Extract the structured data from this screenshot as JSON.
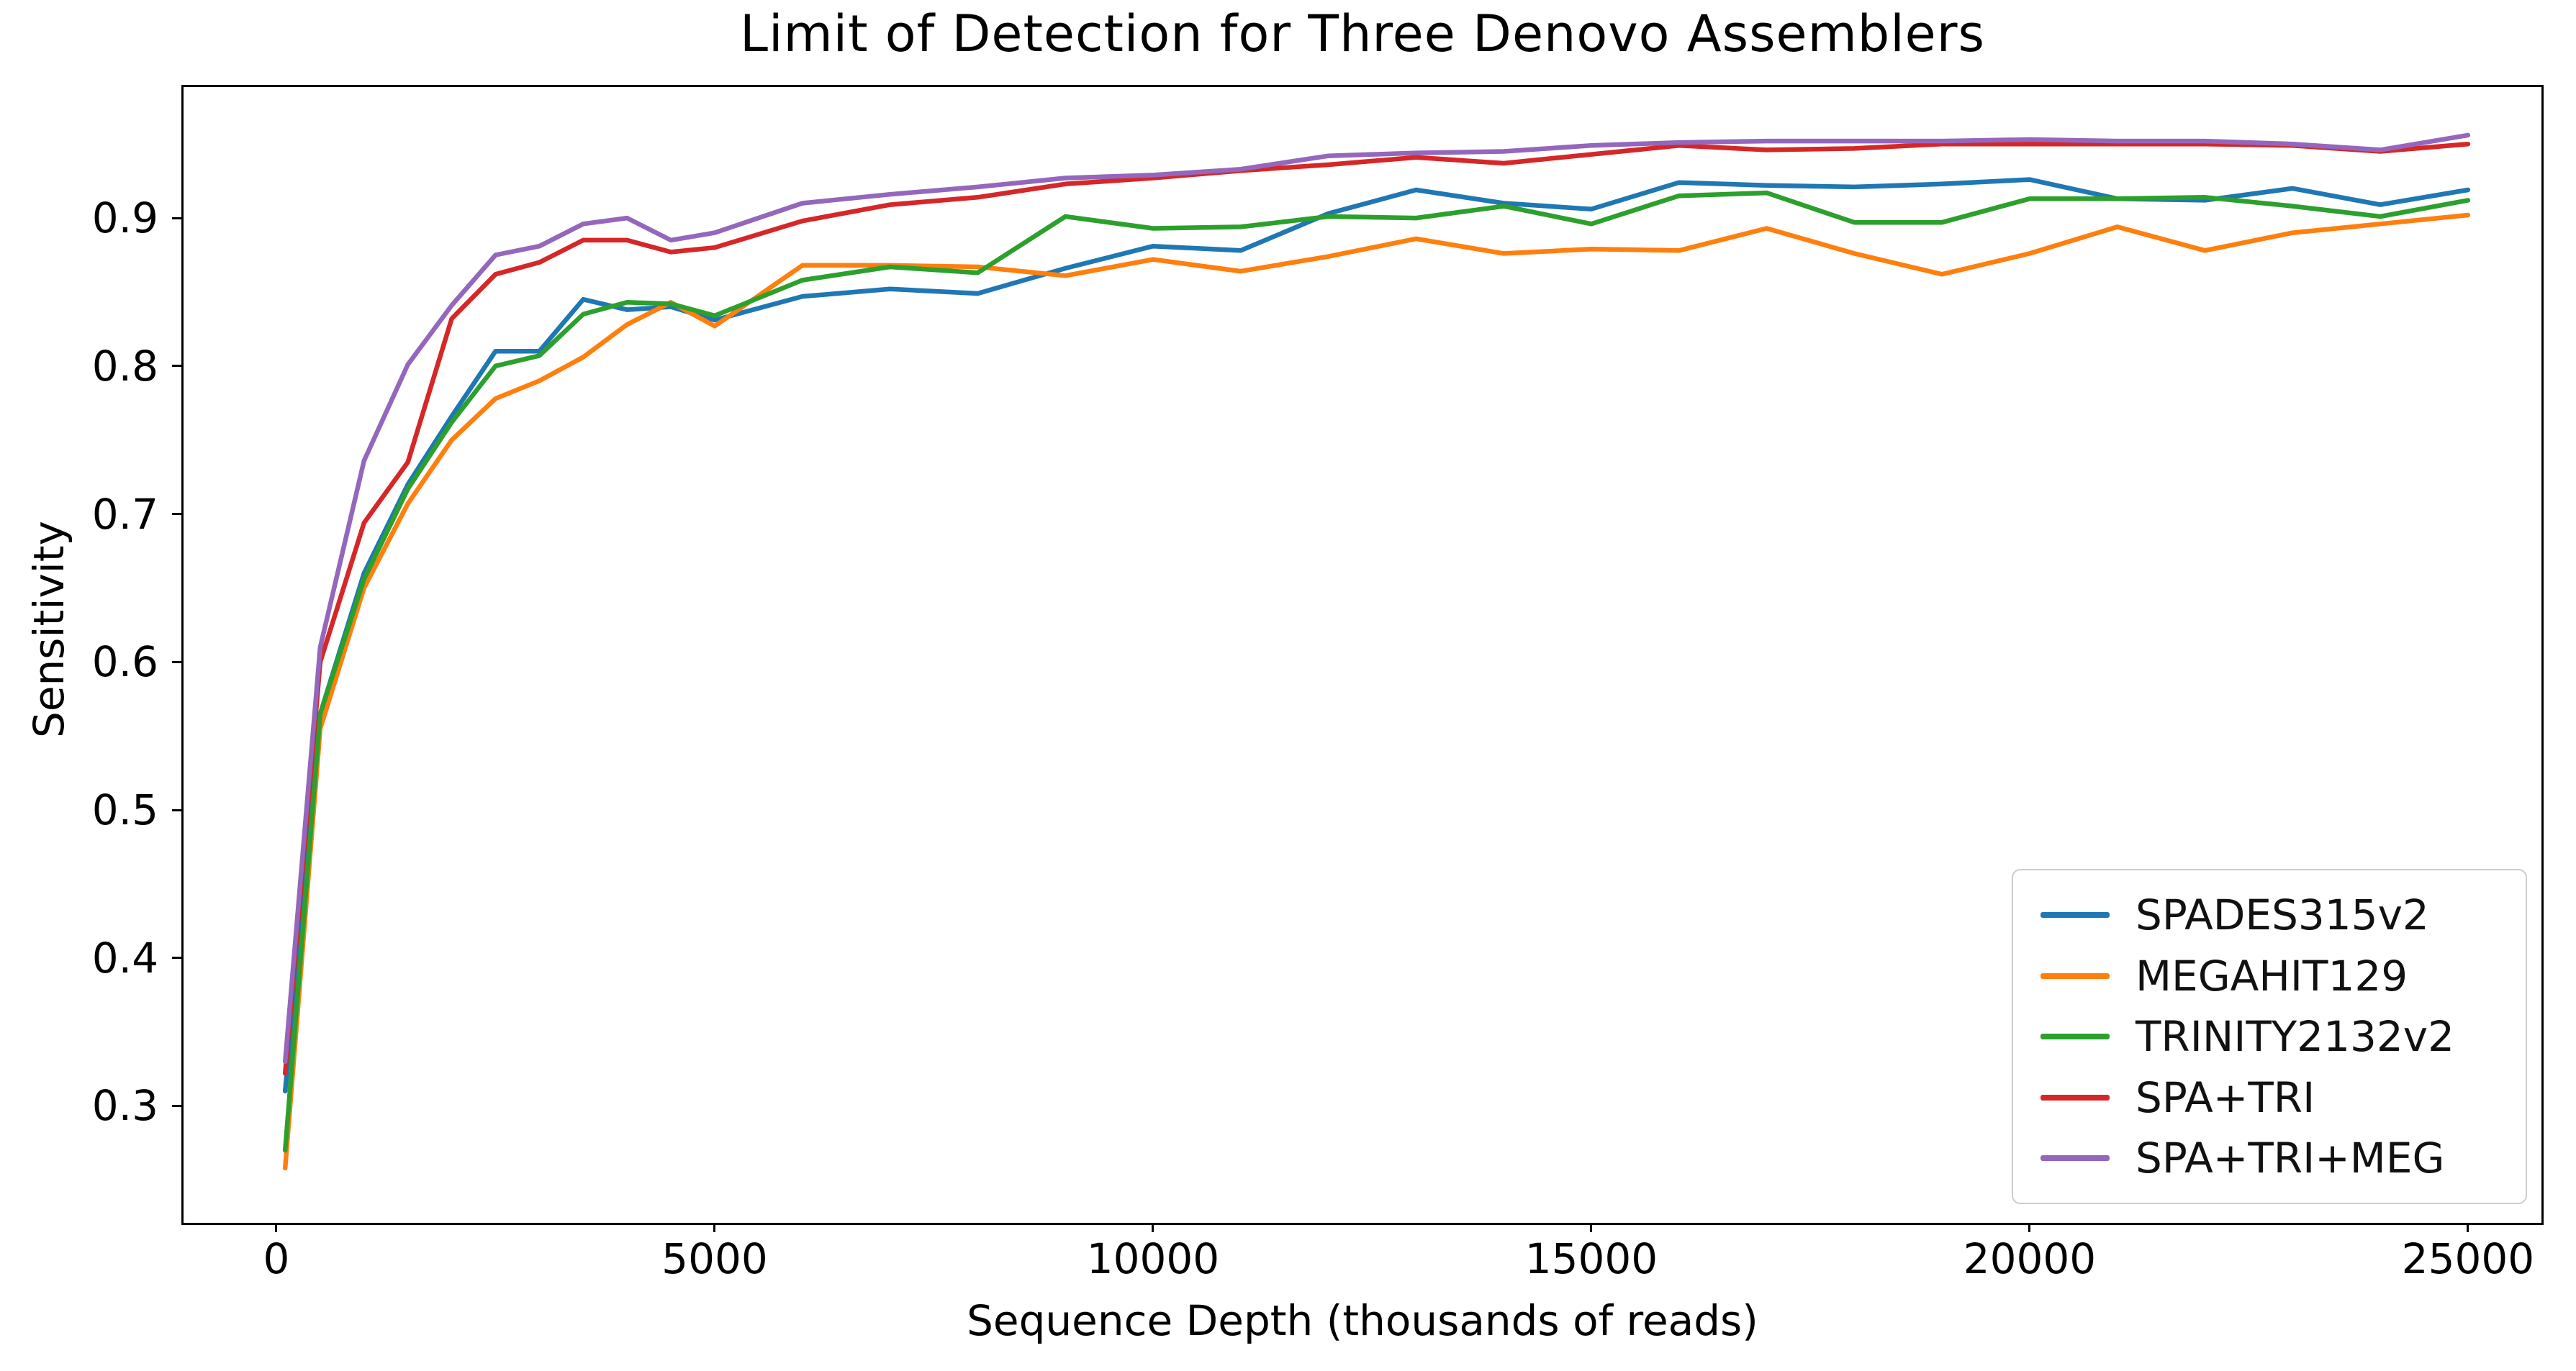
{
  "chart_data": {
    "type": "line",
    "title": "Limit of Detection for Three Denovo Assemblers",
    "xlabel": "Sequence Depth (thousands of reads)",
    "ylabel": "Sensitivity",
    "xlim": [
      -1059,
      25838
    ],
    "ylim": [
      0.221,
      0.9885
    ],
    "x_ticks": [
      0,
      5000,
      10000,
      15000,
      20000,
      25000
    ],
    "y_ticks": [
      0.3,
      0.4,
      0.5,
      0.6,
      0.7,
      0.8,
      0.9
    ],
    "grid": false,
    "legend_position": "lower right",
    "x": [
      100,
      500,
      1000,
      1500,
      2000,
      2500,
      3000,
      3500,
      4000,
      4500,
      5000,
      6000,
      7000,
      8000,
      9000,
      10000,
      11000,
      12000,
      13000,
      14000,
      15000,
      16000,
      17000,
      18000,
      19000,
      20000,
      21000,
      22000,
      23000,
      24000,
      25000
    ],
    "series": [
      {
        "name": "SPADES315v2",
        "color": "#1f77b4",
        "values": [
          0.31,
          0.565,
          0.66,
          0.72,
          0.766,
          0.81,
          0.81,
          0.845,
          0.838,
          0.84,
          0.831,
          0.847,
          0.852,
          0.849,
          0.866,
          0.881,
          0.878,
          0.903,
          0.919,
          0.91,
          0.906,
          0.924,
          0.922,
          0.921,
          0.923,
          0.926,
          0.913,
          0.912,
          0.92,
          0.909,
          0.919
        ]
      },
      {
        "name": "MEGAHIT129",
        "color": "#ff7f0e",
        "values": [
          0.258,
          0.555,
          0.65,
          0.707,
          0.75,
          0.778,
          0.79,
          0.806,
          0.828,
          0.843,
          0.827,
          0.868,
          0.868,
          0.867,
          0.861,
          0.872,
          0.864,
          0.874,
          0.886,
          0.876,
          0.879,
          0.878,
          0.893,
          0.876,
          0.862,
          0.876,
          0.894,
          0.878,
          0.89,
          0.896,
          0.902
        ]
      },
      {
        "name": "TRINITY2132v2",
        "color": "#2ca02c",
        "values": [
          0.27,
          0.565,
          0.656,
          0.717,
          0.762,
          0.8,
          0.807,
          0.835,
          0.843,
          0.842,
          0.834,
          0.858,
          0.867,
          0.863,
          0.901,
          0.893,
          0.894,
          0.901,
          0.9,
          0.908,
          0.896,
          0.915,
          0.917,
          0.897,
          0.897,
          0.913,
          0.913,
          0.914,
          0.908,
          0.901,
          0.912
        ]
      },
      {
        "name": "SPA+TRI",
        "color": "#d62728",
        "values": [
          0.322,
          0.6,
          0.694,
          0.735,
          0.832,
          0.862,
          0.87,
          0.885,
          0.885,
          0.877,
          0.88,
          0.898,
          0.909,
          0.914,
          0.923,
          0.927,
          0.932,
          0.936,
          0.941,
          0.937,
          0.943,
          0.949,
          0.946,
          0.947,
          0.95,
          0.95,
          0.95,
          0.95,
          0.949,
          0.945,
          0.95
        ]
      },
      {
        "name": "SPA+TRI+MEG",
        "color": "#9467bd",
        "values": [
          0.33,
          0.61,
          0.736,
          0.801,
          0.841,
          0.875,
          0.881,
          0.896,
          0.9,
          0.885,
          0.89,
          0.91,
          0.916,
          0.921,
          0.927,
          0.929,
          0.933,
          0.942,
          0.944,
          0.945,
          0.949,
          0.951,
          0.952,
          0.952,
          0.952,
          0.953,
          0.952,
          0.952,
          0.95,
          0.946,
          0.956
        ]
      }
    ]
  }
}
